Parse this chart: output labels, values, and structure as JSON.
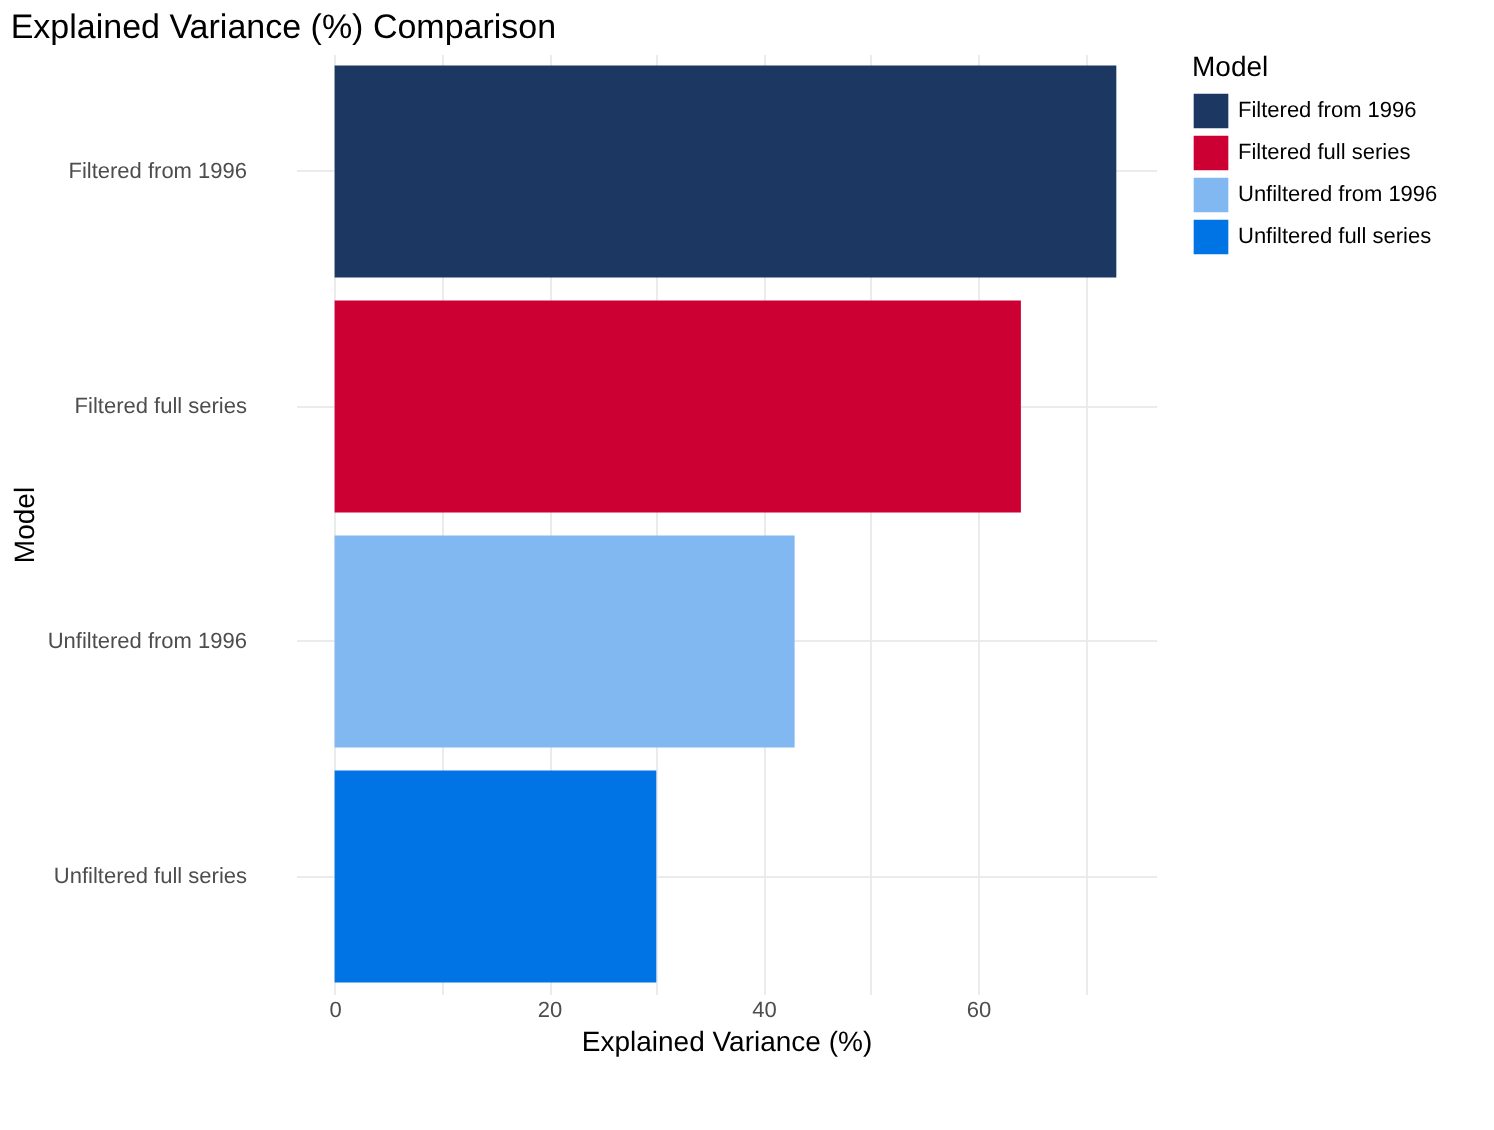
{
  "chart_data": {
    "type": "bar",
    "orientation": "horizontal",
    "title": "Explained Variance (%) Comparison",
    "xlabel": "Explained Variance (%)",
    "ylabel": "Model",
    "legend_title": "Model",
    "categories": [
      "Filtered from 1996",
      "Filtered full series",
      "Unfiltered from 1996",
      "Unfiltered full series"
    ],
    "series": [
      {
        "name": "Filtered from 1996",
        "color": "#1d3763",
        "values": [
          72.9,
          null,
          null,
          null
        ]
      },
      {
        "name": "Filtered full series",
        "color": "#cc0033",
        "values": [
          null,
          64.0,
          null,
          null
        ]
      },
      {
        "name": "Unfiltered from 1996",
        "color": "#82b8f2",
        "values": [
          null,
          null,
          42.9,
          null
        ]
      },
      {
        "name": "Unfiltered full series",
        "color": "#0074e4",
        "values": [
          null,
          null,
          null,
          30.0
        ]
      }
    ],
    "xlim": [
      -3.6,
      76.6
    ],
    "xticks": [
      0,
      {
        "value": 10,
        "label": null
      },
      20,
      {
        "value": 30,
        "label": null
      },
      40,
      {
        "value": 50,
        "label": null
      },
      60,
      {
        "value": 70,
        "label": null
      }
    ],
    "grid": true,
    "legend": "right"
  }
}
